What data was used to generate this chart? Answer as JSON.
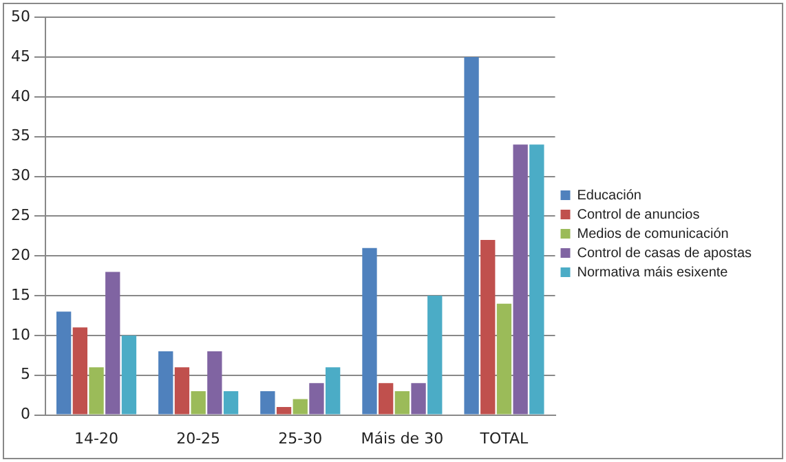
{
  "chart_data": {
    "type": "bar",
    "categories": [
      "14-20",
      "20-25",
      "25-30",
      "Máis de 30",
      "TOTAL"
    ],
    "series": [
      {
        "name": "Educación",
        "color": "#4f81bd",
        "values": [
          13,
          8,
          3,
          21,
          45
        ]
      },
      {
        "name": "Control de anuncios",
        "color": "#c0504d",
        "values": [
          11,
          6,
          1,
          4,
          22
        ]
      },
      {
        "name": "Medios de comunicación",
        "color": "#9bbb59",
        "values": [
          6,
          3,
          2,
          3,
          14
        ]
      },
      {
        "name": "Control de casas de apostas",
        "color": "#8064a2",
        "values": [
          18,
          8,
          4,
          4,
          34
        ]
      },
      {
        "name": "Normativa máis esixente",
        "color": "#4bacc6",
        "values": [
          10,
          3,
          6,
          15,
          34
        ]
      }
    ],
    "ylim": [
      0,
      50
    ],
    "yticks": [
      0,
      5,
      10,
      15,
      20,
      25,
      30,
      35,
      40,
      45,
      50
    ],
    "grid": "y",
    "legend": "right"
  }
}
